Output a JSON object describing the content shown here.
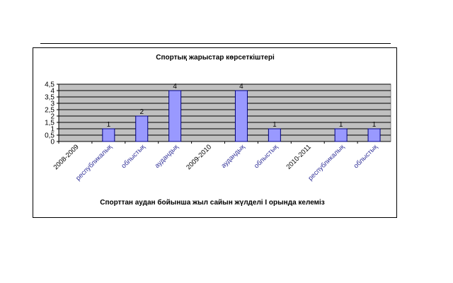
{
  "chart_data": {
    "type": "bar",
    "title": "Спортық жарыстар көрсеткіштері",
    "caption": "Спорттан аудан бойынша жыл сайын  жүлделі І орында келеміз",
    "categories": [
      "2008-2009",
      "республикалық",
      "облыстық",
      "аудандық",
      "2009-2010",
      "аудандық",
      "облыстық",
      "2010-2011",
      "республикалық",
      "облыстық"
    ],
    "values": [
      null,
      1,
      2,
      4,
      null,
      4,
      1,
      null,
      1,
      1
    ],
    "data_labels": [
      "",
      "1",
      "2",
      "4",
      "",
      "4",
      "1",
      "",
      "1",
      "1"
    ],
    "y_ticks": [
      "0",
      "0,5",
      "1",
      "1,5",
      "2",
      "2,5",
      "3",
      "3,5",
      "4",
      "4,5"
    ],
    "ylim": [
      0,
      4.5
    ],
    "grid": true,
    "legend": false,
    "colors": {
      "bar_fill": "#9999ff",
      "bar_stroke": "#000080",
      "plot_bg": "#c0c0c0",
      "category_label_year": "#000000",
      "category_label_level": "#333399"
    }
  }
}
